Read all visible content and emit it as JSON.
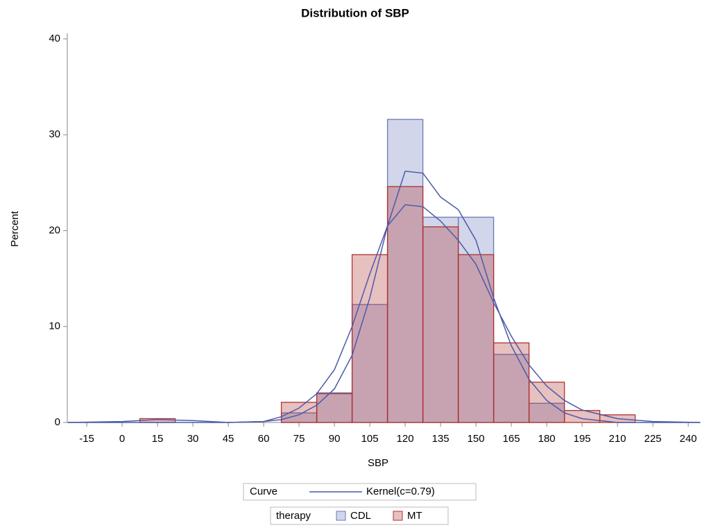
{
  "chart_data": {
    "type": "histogram",
    "title": "Distribution of SBP",
    "x_label": "SBP",
    "y_label": "Percent",
    "bins": [
      7.5,
      22.5,
      37.5,
      52.5,
      67.5,
      82.5,
      97.5,
      112.5,
      127.5,
      142.5,
      157.5,
      172.5,
      187.5,
      202.5,
      217.5
    ],
    "legend_title": "therapy",
    "series": [
      {
        "name": "CDL",
        "color": "#6b78b8",
        "values": [
          0,
          0,
          0,
          0,
          1.0,
          3.1,
          12.3,
          31.6,
          21.4,
          21.4,
          7.1,
          2.0,
          0,
          0
        ]
      },
      {
        "name": "MT",
        "color": "#b0302e",
        "values": [
          0.4,
          0,
          0,
          0,
          2.1,
          3.0,
          17.5,
          24.6,
          20.4,
          17.5,
          8.3,
          4.2,
          1.25,
          0.8
        ]
      }
    ],
    "curves": {
      "legend_title": "Curve",
      "label": "Kernel(c=0.79)",
      "color": "#4a5aa8",
      "x": [
        -23,
        0,
        15,
        30,
        45,
        60,
        67.5,
        75,
        82.5,
        90,
        97.5,
        105,
        112.5,
        120,
        127.5,
        135,
        142.5,
        150,
        157.5,
        165,
        172.5,
        180,
        187.5,
        195,
        210,
        225,
        245
      ],
      "series": [
        {
          "values": [
            0,
            0,
            0,
            0,
            0,
            0.1,
            0.3,
            0.8,
            1.8,
            3.5,
            7,
            13,
            20.5,
            26.2,
            26,
            23.5,
            22.2,
            19,
            13,
            8,
            4.5,
            2.3,
            1,
            0.4,
            0,
            0,
            0
          ]
        },
        {
          "values": [
            0,
            0.1,
            0.3,
            0.2,
            0,
            0.1,
            0.6,
            1.5,
            3,
            5.5,
            10,
            15.5,
            20.5,
            22.7,
            22.5,
            21,
            19,
            16.5,
            12.5,
            9,
            6,
            3.8,
            2.3,
            1.3,
            0.4,
            0.1,
            0
          ]
        }
      ]
    },
    "xlim": [
      -23.25,
      245.25
    ],
    "xticks": [
      -15,
      0,
      15,
      30,
      45,
      60,
      75,
      90,
      105,
      120,
      135,
      150,
      165,
      180,
      195,
      210,
      225,
      240
    ],
    "ylim": [
      0,
      40
    ],
    "yticks": [
      0,
      10,
      20,
      30,
      40
    ]
  }
}
